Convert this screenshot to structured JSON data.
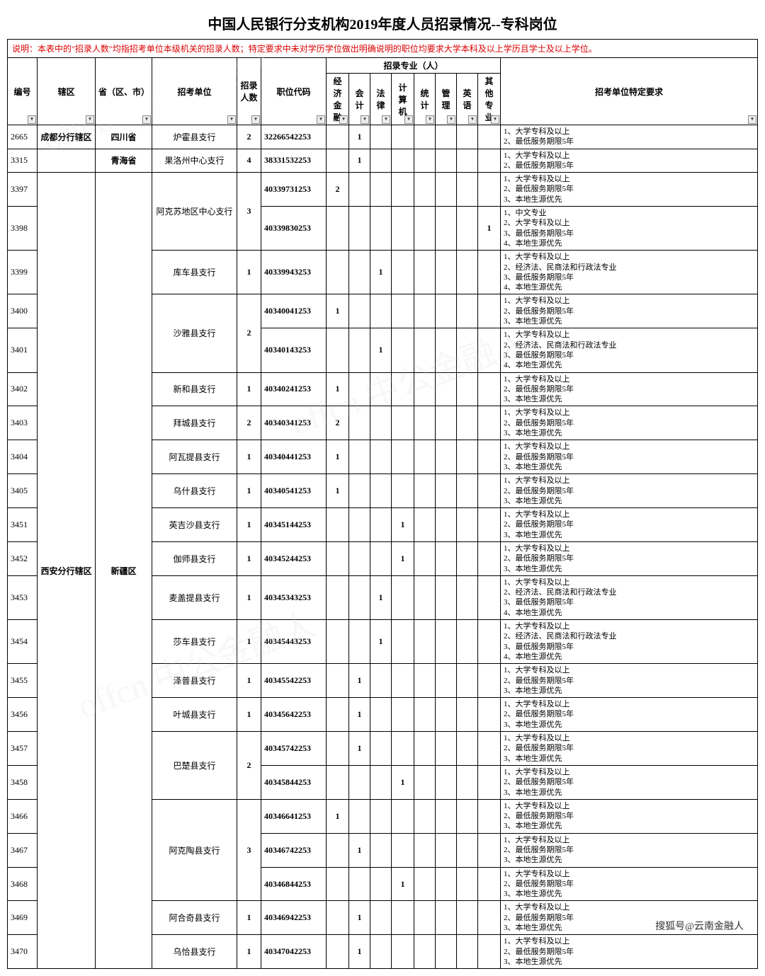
{
  "title": "中国人民银行分支机构2019年度人员招录情况--专科岗位",
  "note": "说明：本表中的\"招录人数\"均指招考单位本级机关的招录人数；特定要求中未对学历学位做出明确说明的职位均要求大学本科及以上学历且学士及以上学位。",
  "headers": {
    "h_id": "编号",
    "h_area": "辖区",
    "h_prov": "省（区、市）",
    "h_unit": "招考单位",
    "h_count": "招录人数",
    "h_code": "职位代码",
    "h_major_group": "招录专业（人）",
    "h_m1": "经济金融",
    "h_m2": "会计",
    "h_m3": "法律",
    "h_m4": "计算机",
    "h_m5": "统计",
    "h_m6": "管理",
    "h_m7": "英语",
    "h_m8": "其他专业",
    "h_req": "招考单位特定要求"
  },
  "areas": {
    "a1": "成都分行辖区",
    "a2": "西安分行辖区"
  },
  "provs": {
    "p1": "四川省",
    "p2": "青海省",
    "p3": "新疆区"
  },
  "reqs": {
    "rA": "1、大学专科及以上\n2、最低服务期限5年",
    "rB": "1、大学专科及以上\n2、最低服务期限5年\n3、本地生源优先",
    "rC": "1、中文专业\n2、大学专科及以上\n3、最低服务期限5年\n4、本地生源优先",
    "rD": "1、大学专科及以上\n2、经济法、民商法和行政法专业\n3、最低服务期限5年\n4、本地生源优先"
  },
  "rows": [
    {
      "id": "2665",
      "unit": "炉霍县支行",
      "count": "2",
      "code": "32266542253",
      "m": [
        "",
        "1",
        "",
        "",
        "",
        "",
        "",
        ""
      ],
      "req": "rA"
    },
    {
      "id": "3315",
      "unit": "果洛州中心支行",
      "count": "4",
      "code": "38331532253",
      "m": [
        "",
        "1",
        "",
        "",
        "",
        "",
        "",
        ""
      ],
      "req": "rA"
    },
    {
      "id": "3397",
      "unit": "",
      "count": "",
      "code": "40339731253",
      "m": [
        "2",
        "",
        "",
        "",
        "",
        "",
        "",
        ""
      ],
      "req": "rB"
    },
    {
      "id": "3398",
      "unit": "阿克苏地区中心支行",
      "count": "3",
      "code": "40339830253",
      "m": [
        "",
        "",
        "",
        "",
        "",
        "",
        "",
        "1"
      ],
      "req": "rC"
    },
    {
      "id": "3399",
      "unit": "库车县支行",
      "count": "1",
      "code": "40339943253",
      "m": [
        "",
        "",
        "1",
        "",
        "",
        "",
        "",
        ""
      ],
      "req": "rD"
    },
    {
      "id": "3400",
      "unit": "",
      "count": "",
      "code": "40340041253",
      "m": [
        "1",
        "",
        "",
        "",
        "",
        "",
        "",
        ""
      ],
      "req": "rB"
    },
    {
      "id": "3401",
      "unit": "沙雅县支行",
      "count": "2",
      "code": "40340143253",
      "m": [
        "",
        "",
        "1",
        "",
        "",
        "",
        "",
        ""
      ],
      "req": "rD"
    },
    {
      "id": "3402",
      "unit": "新和县支行",
      "count": "1",
      "code": "40340241253",
      "m": [
        "1",
        "",
        "",
        "",
        "",
        "",
        "",
        ""
      ],
      "req": "rB"
    },
    {
      "id": "3403",
      "unit": "拜城县支行",
      "count": "2",
      "code": "40340341253",
      "m": [
        "2",
        "",
        "",
        "",
        "",
        "",
        "",
        ""
      ],
      "req": "rB"
    },
    {
      "id": "3404",
      "unit": "阿瓦提县支行",
      "count": "1",
      "code": "40340441253",
      "m": [
        "1",
        "",
        "",
        "",
        "",
        "",
        "",
        ""
      ],
      "req": "rB"
    },
    {
      "id": "3405",
      "unit": "乌什县支行",
      "count": "1",
      "code": "40340541253",
      "m": [
        "1",
        "",
        "",
        "",
        "",
        "",
        "",
        ""
      ],
      "req": "rB"
    },
    {
      "id": "3451",
      "unit": "英吉沙县支行",
      "count": "1",
      "code": "40345144253",
      "m": [
        "",
        "",
        "",
        "1",
        "",
        "",
        "",
        ""
      ],
      "req": "rB"
    },
    {
      "id": "3452",
      "unit": "伽师县支行",
      "count": "1",
      "code": "40345244253",
      "m": [
        "",
        "",
        "",
        "1",
        "",
        "",
        "",
        ""
      ],
      "req": "rB"
    },
    {
      "id": "3453",
      "unit": "麦盖提县支行",
      "count": "1",
      "code": "40345343253",
      "m": [
        "",
        "",
        "1",
        "",
        "",
        "",
        "",
        ""
      ],
      "req": "rD"
    },
    {
      "id": "3454",
      "unit": "莎车县支行",
      "count": "1",
      "code": "40345443253",
      "m": [
        "",
        "",
        "1",
        "",
        "",
        "",
        "",
        ""
      ],
      "req": "rD"
    },
    {
      "id": "3455",
      "unit": "泽普县支行",
      "count": "1",
      "code": "40345542253",
      "m": [
        "",
        "1",
        "",
        "",
        "",
        "",
        "",
        ""
      ],
      "req": "rB"
    },
    {
      "id": "3456",
      "unit": "叶城县支行",
      "count": "1",
      "code": "40345642253",
      "m": [
        "",
        "1",
        "",
        "",
        "",
        "",
        "",
        ""
      ],
      "req": "rB"
    },
    {
      "id": "3457",
      "unit": "",
      "count": "",
      "code": "40345742253",
      "m": [
        "",
        "1",
        "",
        "",
        "",
        "",
        "",
        ""
      ],
      "req": "rB"
    },
    {
      "id": "3458",
      "unit": "巴楚县支行",
      "count": "2",
      "code": "40345844253",
      "m": [
        "",
        "",
        "",
        "1",
        "",
        "",
        "",
        ""
      ],
      "req": "rB"
    },
    {
      "id": "3466",
      "unit": "",
      "count": "",
      "code": "40346641253",
      "m": [
        "1",
        "",
        "",
        "",
        "",
        "",
        "",
        ""
      ],
      "req": "rB"
    },
    {
      "id": "3467",
      "unit": "阿克陶县支行",
      "count": "3",
      "code": "40346742253",
      "m": [
        "",
        "1",
        "",
        "",
        "",
        "",
        "",
        ""
      ],
      "req": "rB"
    },
    {
      "id": "3468",
      "unit": "",
      "count": "",
      "code": "40346844253",
      "m": [
        "",
        "",
        "",
        "1",
        "",
        "",
        "",
        ""
      ],
      "req": "rB"
    },
    {
      "id": "3469",
      "unit": "阿合奇县支行",
      "count": "1",
      "code": "40346942253",
      "m": [
        "",
        "1",
        "",
        "",
        "",
        "",
        "",
        ""
      ],
      "req": "rB"
    },
    {
      "id": "3470",
      "unit": "乌恰县支行",
      "count": "1",
      "code": "40347042253",
      "m": [
        "",
        "1",
        "",
        "",
        "",
        "",
        "",
        ""
      ],
      "req": "rB"
    }
  ],
  "footer": "搜狐号@云南金融人"
}
